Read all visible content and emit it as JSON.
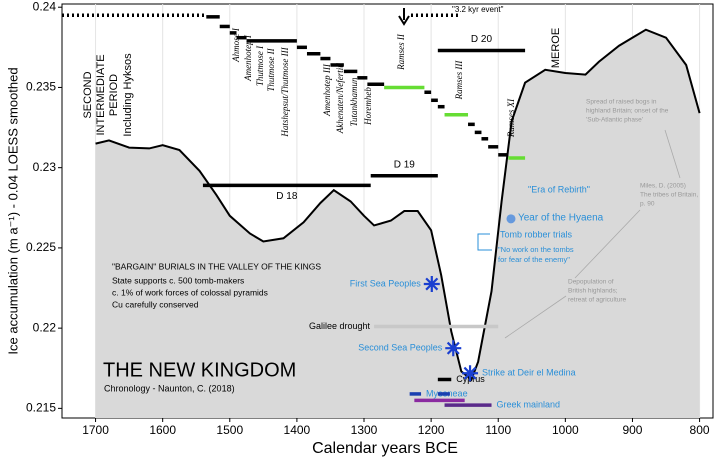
{
  "chart_data": {
    "type": "area",
    "x_label": "Calendar years BCE",
    "y_label": "Ice accumulation (m a⁻¹) - 0.04 LOESS smoothed",
    "xlim": [
      1750,
      780
    ],
    "xticks": [
      1700,
      1600,
      1500,
      1400,
      1300,
      1200,
      1100,
      1000,
      900,
      800
    ],
    "ylim": [
      0.2144,
      0.2402
    ],
    "yticks": [
      0.24,
      0.235,
      0.23,
      0.225,
      0.22,
      0.215
    ],
    "grid": true,
    "color": "#000000",
    "fill": "#d9d9d9",
    "x": [
      1700,
      1680,
      1650,
      1620,
      1600,
      1575,
      1545,
      1520,
      1500,
      1470,
      1450,
      1420,
      1390,
      1365,
      1345,
      1320,
      1300,
      1285,
      1260,
      1240,
      1220,
      1200,
      1185,
      1170,
      1155,
      1140,
      1130,
      1110,
      1095,
      1080,
      1060,
      1030,
      1000,
      970,
      950,
      920,
      880,
      850,
      820,
      800
    ],
    "values": [
      0.2315,
      0.2317,
      0.23125,
      0.2312,
      0.2314,
      0.2311,
      0.2298,
      0.2283,
      0.227,
      0.2259,
      0.2254,
      0.2256,
      0.2266,
      0.2278,
      0.2286,
      0.2279,
      0.227,
      0.2264,
      0.2267,
      0.2273,
      0.2273,
      0.2261,
      0.2233,
      0.2198,
      0.2173,
      0.2168,
      0.2179,
      0.2223,
      0.2279,
      0.2329,
      0.2353,
      0.2361,
      0.2359,
      0.2358,
      0.2366,
      0.2376,
      0.2386,
      0.2381,
      0.2364,
      0.2334
    ],
    "reign_steps": [
      {
        "start": 1750,
        "end": 1535,
        "value": 0.2395,
        "color": "#000000",
        "dotted": true
      },
      {
        "start": 1535,
        "end": 1515,
        "value": 0.2394,
        "color": "#000000"
      },
      {
        "start": 1515,
        "end": 1500,
        "value": 0.2388,
        "color": "#000000"
      },
      {
        "start": 1500,
        "end": 1490,
        "value": 0.2384,
        "color": "#000000"
      },
      {
        "start": 1490,
        "end": 1475,
        "value": 0.2381,
        "color": "#000000"
      },
      {
        "start": 1475,
        "end": 1400,
        "value": 0.2379,
        "color": "#000000"
      },
      {
        "start": 1400,
        "end": 1385,
        "value": 0.2375,
        "color": "#000000"
      },
      {
        "start": 1385,
        "end": 1365,
        "value": 0.2371,
        "color": "#000000"
      },
      {
        "start": 1365,
        "end": 1350,
        "value": 0.2368,
        "color": "#000000"
      },
      {
        "start": 1350,
        "end": 1330,
        "value": 0.2364,
        "color": "#000000"
      },
      {
        "start": 1330,
        "end": 1310,
        "value": 0.236,
        "color": "#000000"
      },
      {
        "start": 1310,
        "end": 1295,
        "value": 0.2356,
        "color": "#000000"
      },
      {
        "start": 1295,
        "end": 1270,
        "value": 0.2352,
        "color": "#000000"
      },
      {
        "start": 1270,
        "end": 1210,
        "value": 0.235,
        "color": "#66dd33"
      },
      {
        "start": 1210,
        "end": 1200,
        "value": 0.2347,
        "color": "#000000"
      },
      {
        "start": 1200,
        "end": 1190,
        "value": 0.2342,
        "color": "#000000"
      },
      {
        "start": 1190,
        "end": 1180,
        "value": 0.2338,
        "color": "#000000"
      },
      {
        "start": 1180,
        "end": 1145,
        "value": 0.2333,
        "color": "#66dd33"
      },
      {
        "start": 1145,
        "end": 1135,
        "value": 0.2327,
        "color": "#000000"
      },
      {
        "start": 1135,
        "end": 1125,
        "value": 0.2322,
        "color": "#000000"
      },
      {
        "start": 1125,
        "end": 1115,
        "value": 0.2318,
        "color": "#000000"
      },
      {
        "start": 1115,
        "end": 1100,
        "value": 0.2313,
        "color": "#000000"
      },
      {
        "start": 1100,
        "end": 1085,
        "value": 0.2308,
        "color": "#000000"
      },
      {
        "start": 1085,
        "end": 1060,
        "value": 0.2306,
        "color": "#66dd33"
      },
      {
        "start": 1230,
        "end": 1160,
        "value": 0.2395,
        "color": "#000000",
        "dotted": true
      }
    ],
    "dynasties": [
      {
        "name": "D 18",
        "start": 1540,
        "end": 1290,
        "value": 0.2289
      },
      {
        "name": "D 19",
        "start": 1290,
        "end": 1190,
        "value": 0.2295
      },
      {
        "name": "D 20",
        "start": 1190,
        "end": 1060,
        "value": 0.2373
      }
    ],
    "periods": [
      {
        "name": "Galilee drought",
        "start": 1285,
        "end": 1100,
        "value": 0.2201,
        "color": "#c8c8c8"
      },
      {
        "name": "Cyprus",
        "start": 1190,
        "end": 1170,
        "value": 0.2168,
        "color": "#000000"
      },
      {
        "name": "Myceneae",
        "start": 1232,
        "end": 1215,
        "value": 0.2159,
        "color": "#1a3fb0"
      },
      {
        "start": 1190,
        "end": 1172,
        "value": 0.2159,
        "color": "#1a3fb0"
      },
      {
        "start": 1225,
        "end": 1150,
        "value": 0.2155,
        "color": "#8a2aa0"
      },
      {
        "name": "Greek mainland",
        "start": 1180,
        "end": 1110,
        "value": 0.2152,
        "color": "#5a2a8a"
      }
    ],
    "events": [
      {
        "name": "First Sea Peoples",
        "x": 1199,
        "value": 0.22275,
        "color": "#1a3fd0"
      },
      {
        "name": "Second Sea Peoples",
        "x": 1167,
        "value": 0.21875,
        "color": "#1a3fd0"
      },
      {
        "name": "Strike at Deir el Medina",
        "x": 1142,
        "value": 0.21719,
        "color": "#1a3fd0"
      },
      {
        "name": "Year of the Hyaena",
        "x": 1081,
        "value": 0.22681,
        "color": "#6699dd"
      }
    ],
    "kyr_event": "\"3.2 kyr event\"",
    "era_label": [
      "SECOND",
      "INTERMEDIATE",
      "PERIOD",
      "Including Hyksos"
    ],
    "meroe": "MEROE",
    "pharaohs": [
      "Ahmose I",
      "Amenhotep I",
      "Thutmose I",
      "Thutmose II",
      "Hatshepsut/Thutmose III",
      "Amenhotep III",
      "Akhenaten/Nefertiti",
      "Tutankhamun",
      "Horemheb",
      "Ramses II",
      "Ramses III",
      "Ramses XI"
    ],
    "title": "THE NEW KINGDOM",
    "subtitle": "Chronology - Naunton, C. (2018)",
    "burials": [
      "\"BARGAIN\" BURIALS IN THE VALLEY OF THE KINGS",
      "State supports c. 500 tomb-makers",
      "c. 1% of work forces of colossal pyramids",
      "Cu carefully conserved"
    ],
    "era_of_rebirth": "\"Era of Rebirth\"",
    "tomb_robber": "Tomb robber trials",
    "no_work": [
      "\"No work on the tombs",
      "for fear of the enemy\""
    ],
    "notes_bogs": [
      "Spread of raised bogs in",
      "highland Britain; onset of the",
      "'Sub-Atlantic phase'"
    ],
    "notes_miles": [
      "Miles, D. (2005)",
      "The tribes of Britain,",
      "p. 90"
    ],
    "notes_depop": [
      "Depopulation of",
      "British highlands;",
      "retreat of agriculture"
    ]
  }
}
